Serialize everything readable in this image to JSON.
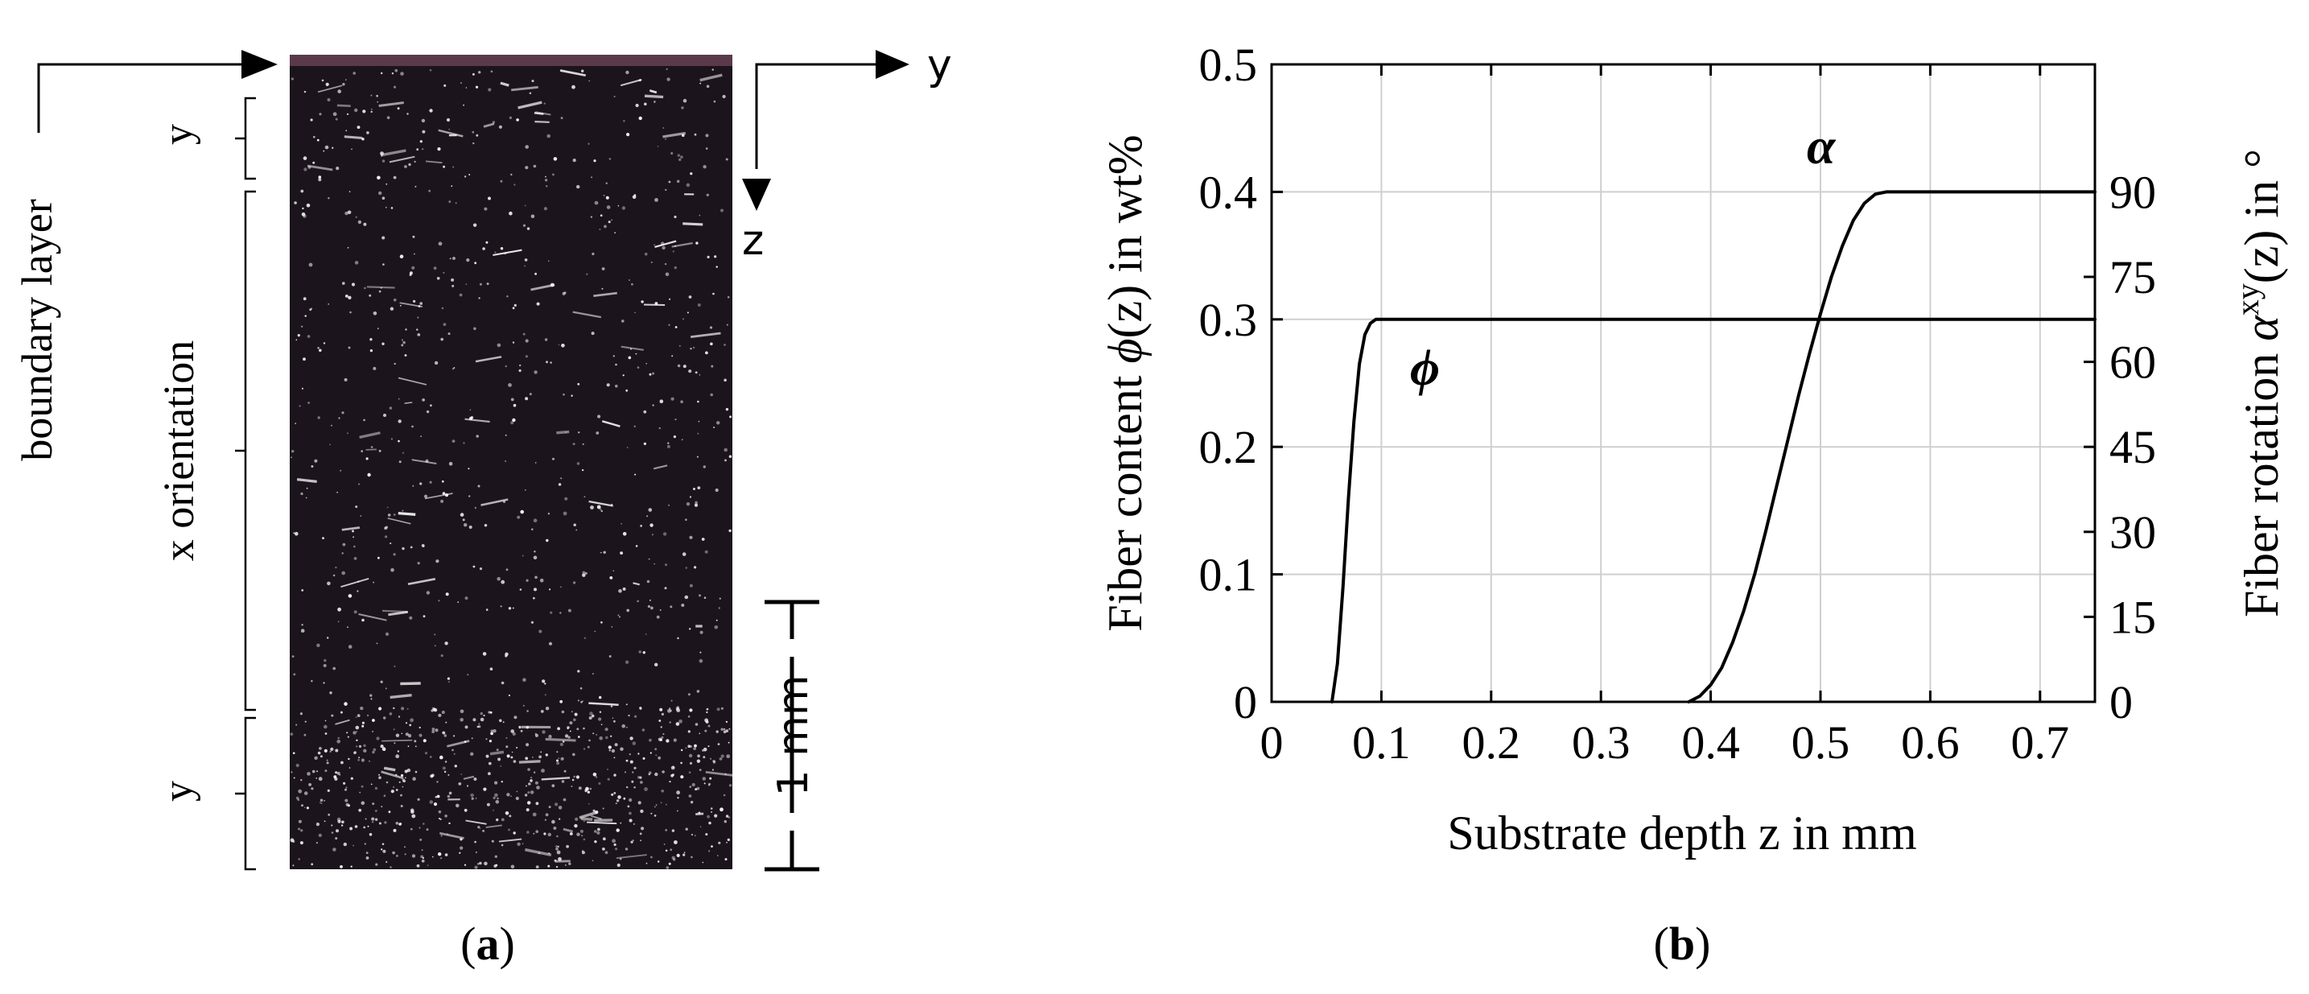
{
  "panel_a": {
    "boundary_label": "boundary layer",
    "top_band_label": "y",
    "middle_band_label": "x orientation",
    "bottom_band_label": "y",
    "axis_y_label": "y",
    "axis_z_label": "z",
    "scale_label": "1 mm",
    "caption_open": "(",
    "caption_letter": "a",
    "caption_close": ")",
    "colors": {
      "sample_dark": "#1c141c",
      "sample_top_edge": "#5a3a4a",
      "speckle": "#ffffff"
    }
  },
  "panel_b": {
    "caption_open": "(",
    "caption_letter": "b",
    "caption_close": ")"
  },
  "chart_data": {
    "type": "line",
    "xlabel": "Substrate depth z in mm",
    "ylabel_left": {
      "pre": "Fiber content ",
      "symbol": "ϕ",
      "post": "(z) in wt%"
    },
    "ylabel_right": {
      "pre": "Fiber rotation ",
      "symbol": "α",
      "sup": "xy",
      "post": "(z) in °"
    },
    "xlim": [
      0,
      0.75
    ],
    "ylim_left": [
      0,
      0.5
    ],
    "ylim_right": [
      0,
      112.5
    ],
    "x_ticks": [
      "0",
      "0.1",
      "0.2",
      "0.3",
      "0.4",
      "0.5",
      "0.6",
      "0.7"
    ],
    "x_tick_values": [
      0,
      0.1,
      0.2,
      0.3,
      0.4,
      0.5,
      0.6,
      0.7
    ],
    "y_left_ticks": [
      "0",
      "0.1",
      "0.2",
      "0.3",
      "0.4",
      "0.5"
    ],
    "y_left_tick_values": [
      0,
      0.1,
      0.2,
      0.3,
      0.4,
      0.5
    ],
    "y_right_ticks": [
      "0",
      "15",
      "30",
      "45",
      "60",
      "75",
      "90"
    ],
    "y_right_tick_values": [
      0,
      15,
      30,
      45,
      60,
      75,
      90
    ],
    "grid": true,
    "series": [
      {
        "name": "ϕ",
        "axis": "left",
        "x": [
          0.055,
          0.06,
          0.065,
          0.07,
          0.075,
          0.08,
          0.085,
          0.09,
          0.095,
          0.1,
          0.2,
          0.3,
          0.4,
          0.5,
          0.6,
          0.7,
          0.75
        ],
        "y": [
          0.0,
          0.03,
          0.09,
          0.16,
          0.22,
          0.265,
          0.288,
          0.297,
          0.3,
          0.3,
          0.3,
          0.3,
          0.3,
          0.3,
          0.3,
          0.3,
          0.3
        ]
      },
      {
        "name": "α",
        "axis": "right",
        "x": [
          0.38,
          0.39,
          0.4,
          0.41,
          0.42,
          0.43,
          0.44,
          0.45,
          0.46,
          0.47,
          0.48,
          0.49,
          0.5,
          0.51,
          0.52,
          0.53,
          0.54,
          0.55,
          0.56,
          0.6,
          0.7,
          0.75
        ],
        "y": [
          0,
          1,
          3,
          6,
          10.5,
          16,
          22.5,
          30,
          38,
          46,
          54,
          61.5,
          68.5,
          75,
          80.5,
          85,
          88,
          89.6,
          90,
          90,
          90,
          90
        ]
      }
    ],
    "colors": {
      "line": "#000000",
      "grid": "#cfcfcf"
    }
  }
}
